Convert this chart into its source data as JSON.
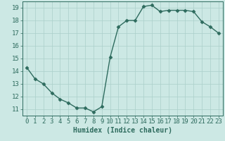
{
  "x": [
    0,
    1,
    2,
    3,
    4,
    5,
    6,
    7,
    8,
    9,
    10,
    11,
    12,
    13,
    14,
    15,
    16,
    17,
    18,
    19,
    20,
    21,
    22,
    23
  ],
  "y": [
    14.3,
    13.4,
    13.0,
    12.3,
    11.8,
    11.5,
    11.1,
    11.1,
    10.8,
    11.2,
    15.1,
    17.5,
    18.0,
    18.0,
    19.1,
    19.2,
    18.7,
    18.8,
    18.8,
    18.8,
    18.7,
    17.9,
    17.5,
    17.0
  ],
  "line_color": "#2e6b5e",
  "marker": "D",
  "markersize": 2.5,
  "linewidth": 1.0,
  "bg_color": "#cce8e4",
  "grid_color": "#aacfca",
  "xlabel": "Humidex (Indice chaleur)",
  "xlim": [
    -0.5,
    23.5
  ],
  "ylim": [
    10.5,
    19.5
  ],
  "yticks": [
    11,
    12,
    13,
    14,
    15,
    16,
    17,
    18,
    19
  ],
  "xticks": [
    0,
    1,
    2,
    3,
    4,
    5,
    6,
    7,
    8,
    9,
    10,
    11,
    12,
    13,
    14,
    15,
    16,
    17,
    18,
    19,
    20,
    21,
    22,
    23
  ],
  "tick_color": "#2e6b5e",
  "label_color": "#2e6b5e",
  "xlabel_fontsize": 7,
  "tick_fontsize": 6.5,
  "spine_color": "#2e6b5e"
}
